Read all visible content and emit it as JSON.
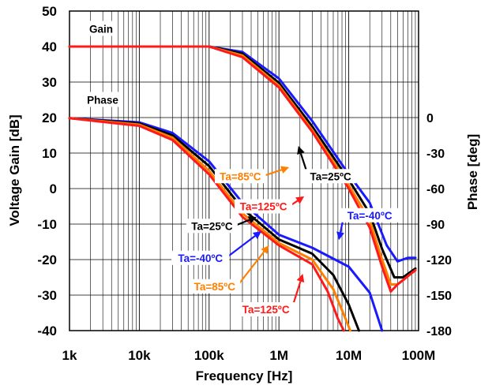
{
  "chart_data": {
    "type": "line",
    "xlabel": "Frequency [Hz]",
    "ylabel_left": "Voltage Gain [dB]",
    "ylabel_right": "Phase [deg]",
    "x_scale": "log",
    "xlim": [
      1000,
      100000000
    ],
    "ylim_left": [
      -40,
      50
    ],
    "ylim_right": [
      -180,
      0
    ],
    "x_ticks": [
      1000,
      10000,
      100000,
      1000000,
      10000000,
      100000000
    ],
    "x_tick_labels": [
      "1k",
      "10k",
      "100k",
      "1M",
      "10M",
      "100M"
    ],
    "y_ticks_left": [
      50,
      40,
      30,
      20,
      10,
      0,
      -10,
      -20,
      -30,
      -40
    ],
    "y_ticks_right": [
      0,
      -30,
      -60,
      -90,
      -120,
      -150,
      -180
    ],
    "grid": true,
    "group_labels": {
      "gain": "Gain",
      "phase": "Phase"
    },
    "series": [
      {
        "name": "Ta=-40ºC",
        "color": "#1a1aff",
        "kind": "gain",
        "points": [
          [
            1000,
            40
          ],
          [
            100000,
            40
          ],
          [
            300000,
            38.5
          ],
          [
            1000000,
            31
          ],
          [
            3000000,
            19
          ],
          [
            10000000,
            4
          ],
          [
            20000000,
            -4
          ],
          [
            35000000,
            -16
          ],
          [
            50000000,
            -20.5
          ],
          [
            70000000,
            -19.5
          ],
          [
            90000000,
            -19.5
          ]
        ]
      },
      {
        "name": "Ta=25ºC",
        "color": "#000000",
        "kind": "gain",
        "points": [
          [
            1000,
            40
          ],
          [
            100000,
            40
          ],
          [
            300000,
            38
          ],
          [
            1000000,
            29.8
          ],
          [
            3000000,
            17.5
          ],
          [
            10000000,
            2.5
          ],
          [
            20000000,
            -7
          ],
          [
            30000000,
            -17
          ],
          [
            45000000,
            -25
          ],
          [
            60000000,
            -25
          ],
          [
            90000000,
            -22.5
          ]
        ]
      },
      {
        "name": "Ta=85ºC",
        "color": "#ff7f00",
        "kind": "gain",
        "points": [
          [
            1000,
            40
          ],
          [
            100000,
            40
          ],
          [
            300000,
            37.5
          ],
          [
            1000000,
            29
          ],
          [
            3000000,
            16.5
          ],
          [
            10000000,
            1
          ],
          [
            20000000,
            -9
          ],
          [
            30000000,
            -20
          ],
          [
            40000000,
            -27
          ],
          [
            50000000,
            -27
          ],
          [
            90000000,
            -23
          ]
        ]
      },
      {
        "name": "Ta=125ºC",
        "color": "#ff1a1a",
        "kind": "gain",
        "points": [
          [
            1000,
            40
          ],
          [
            100000,
            40
          ],
          [
            300000,
            37
          ],
          [
            1000000,
            28.5
          ],
          [
            3000000,
            16
          ],
          [
            10000000,
            0
          ],
          [
            20000000,
            -11
          ],
          [
            30000000,
            -22
          ],
          [
            40000000,
            -29
          ],
          [
            50000000,
            -27
          ],
          [
            90000000,
            -23
          ]
        ]
      },
      {
        "name": "Ta=-40ºC",
        "color": "#1a1aff",
        "kind": "phase",
        "points": [
          [
            1000,
            -0.5
          ],
          [
            10000,
            -4
          ],
          [
            30000,
            -13
          ],
          [
            100000,
            -37
          ],
          [
            300000,
            -72
          ],
          [
            1000000,
            -99
          ],
          [
            3000000,
            -110
          ],
          [
            10000000,
            -126
          ],
          [
            20000000,
            -148
          ],
          [
            30000000,
            -180
          ]
        ]
      },
      {
        "name": "Ta=25ºC",
        "color": "#000000",
        "kind": "phase",
        "points": [
          [
            1000,
            -0.5
          ],
          [
            10000,
            -5
          ],
          [
            30000,
            -15
          ],
          [
            100000,
            -41
          ],
          [
            300000,
            -77
          ],
          [
            1000000,
            -103
          ],
          [
            3000000,
            -115
          ],
          [
            6000000,
            -133
          ],
          [
            10000000,
            -158
          ],
          [
            14000000,
            -180
          ]
        ]
      },
      {
        "name": "Ta=85ºC",
        "color": "#ff7f00",
        "kind": "phase",
        "points": [
          [
            1000,
            -0.5
          ],
          [
            10000,
            -6
          ],
          [
            30000,
            -17
          ],
          [
            100000,
            -45
          ],
          [
            300000,
            -81
          ],
          [
            1000000,
            -106
          ],
          [
            3000000,
            -120
          ],
          [
            6000000,
            -145
          ],
          [
            9000000,
            -170
          ],
          [
            10500000,
            -180
          ]
        ]
      },
      {
        "name": "Ta=125ºC",
        "color": "#ff1a1a",
        "kind": "phase",
        "points": [
          [
            1000,
            -0.5
          ],
          [
            10000,
            -7
          ],
          [
            30000,
            -19
          ],
          [
            100000,
            -48
          ],
          [
            300000,
            -84
          ],
          [
            1000000,
            -108
          ],
          [
            3000000,
            -124
          ],
          [
            5000000,
            -147
          ],
          [
            7000000,
            -170
          ],
          [
            8500000,
            -180
          ]
        ]
      }
    ],
    "annotations": [
      {
        "text": "Ta=25ºC",
        "color": "#000000",
        "label_xy": [
          5500000,
          3.5
        ],
        "arrow_to": [
          1900000,
          12
        ]
      },
      {
        "text": "Ta=85ºC",
        "color": "#ff7f00",
        "label_xy": [
          280000,
          3.5
        ],
        "arrow_to": [
          1400000,
          6
        ]
      },
      {
        "text": "Ta=125ºC",
        "color": "#ff1a1a",
        "label_xy": [
          600000,
          -5
        ],
        "arrow_to": [
          2300000,
          -2.2
        ]
      },
      {
        "text": "Ta=-40ºC",
        "color": "#1a1aff",
        "label_xy": [
          20000000,
          -7.5
        ],
        "arrow_to": [
          7200000,
          -14.5
        ]
      },
      {
        "text": "Ta=25ºC",
        "color": "#000000",
        "label_xy": [
          110000,
          -10.5
        ],
        "arrow_to": [
          480000,
          -8
        ]
      },
      {
        "text": "Ta=-40ºC",
        "color": "#1a1aff",
        "label_xy": [
          75000,
          -19.5
        ],
        "arrow_to": [
          560000,
          -12
        ]
      },
      {
        "text": "Ta=85ºC",
        "color": "#ff7f00",
        "label_xy": [
          120000,
          -27.5
        ],
        "arrow_to": [
          720000,
          -16
        ]
      },
      {
        "text": "Ta=125ºC",
        "color": "#ff1a1a",
        "label_xy": [
          650000,
          -34
        ],
        "arrow_to": [
          2200000,
          -24
        ]
      }
    ]
  }
}
